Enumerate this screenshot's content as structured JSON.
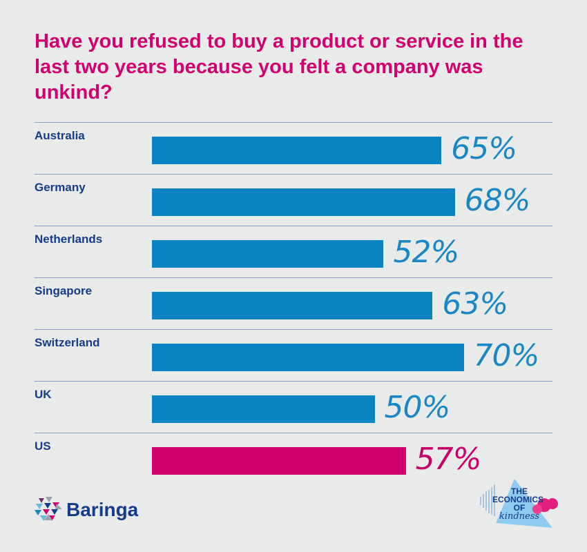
{
  "chart_data": {
    "type": "bar",
    "orientation": "horizontal",
    "title": "Have you refused to buy a product or service in the last two years because you felt a company was unkind?",
    "categories": [
      "Australia",
      "Germany",
      "Netherlands",
      "Singapore",
      "Switzerland",
      "UK",
      "US"
    ],
    "values": [
      65,
      68,
      52,
      63,
      70,
      50,
      57
    ],
    "value_labels": [
      "65%",
      "68%",
      "52%",
      "63%",
      "70%",
      "50%",
      "57%"
    ],
    "colors": [
      "#0a84c2",
      "#0a84c2",
      "#0a84c2",
      "#0a84c2",
      "#0a84c2",
      "#0a84c2",
      "#d1006e"
    ],
    "label_colors": [
      "#1a86c4",
      "#1a86c4",
      "#1a86c4",
      "#1a86c4",
      "#1a86c4",
      "#1a86c4",
      "#c8006a"
    ],
    "xlim": [
      0,
      100
    ],
    "grid": false,
    "legend": "none"
  },
  "branding": {
    "company": "Baringa",
    "campaign": "THE ECONOMICS OF kindness"
  }
}
